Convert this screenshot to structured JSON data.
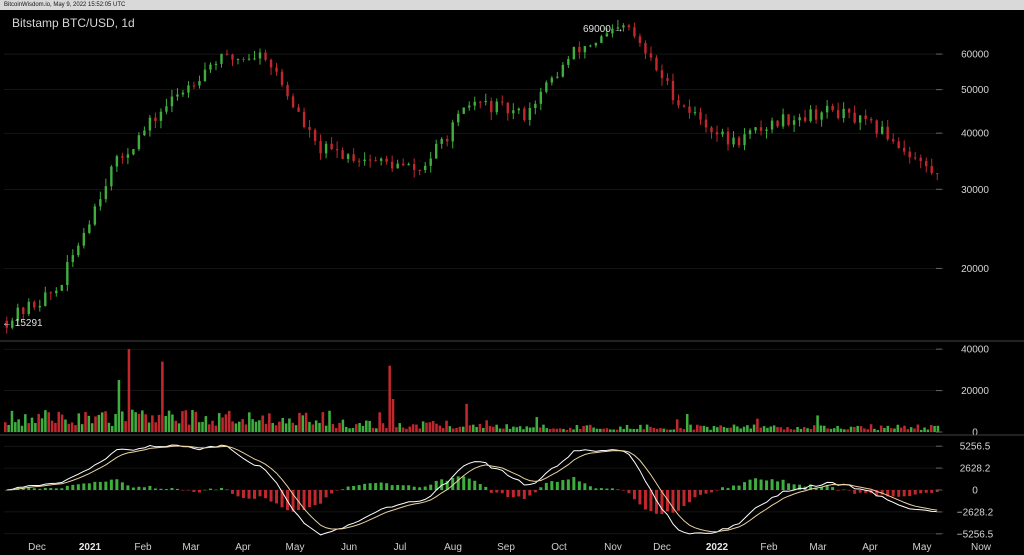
{
  "window": {
    "header_text": "BitcoinWisdom.io, May 9, 2022 15:52:05 UTC"
  },
  "chart_data": [
    {
      "type": "candlestick",
      "title": "Bitstamp BTC/USD, 1d",
      "ylim": [
        14000,
        70000
      ],
      "y_scale": "log",
      "y_ticks": [
        "20000",
        "30000",
        "40000",
        "50000",
        "60000"
      ],
      "x_ticks": [
        "Dec",
        "2021",
        "Feb",
        "Mar",
        "Apr",
        "May",
        "Jun",
        "Jul",
        "Aug",
        "Sep",
        "Oct",
        "Nov",
        "Dec",
        "2022",
        "Feb",
        "Mar",
        "Apr",
        "May",
        "Now"
      ],
      "bold_x_ticks": [
        "2021",
        "2022"
      ],
      "annotations": {
        "high": "69000 →",
        "low": "← 15291"
      },
      "price_path": [
        {
          "month": "Nov 2020",
          "close": 15291
        },
        {
          "month": "Dec 2020",
          "close": 18000
        },
        {
          "month": "Jan 2021",
          "close": 33000
        },
        {
          "month": "Feb 2021",
          "close": 45000
        },
        {
          "month": "Mar 2021",
          "close": 58000
        },
        {
          "month": "Apr 2021",
          "close": 60000
        },
        {
          "month": "May 2021",
          "close": 37000
        },
        {
          "month": "Jun 2021",
          "close": 35000
        },
        {
          "month": "Jul 2021",
          "close": 33000
        },
        {
          "month": "Aug 2021",
          "close": 47000
        },
        {
          "month": "Sep 2021",
          "close": 44000
        },
        {
          "month": "Oct 2021",
          "close": 61000
        },
        {
          "month": "Nov 2021",
          "close": 69000
        },
        {
          "month": "Dec 2021",
          "close": 47000
        },
        {
          "month": "Jan 2022",
          "close": 38000
        },
        {
          "month": "Feb 2022",
          "close": 43000
        },
        {
          "month": "Mar 2022",
          "close": 45000
        },
        {
          "month": "Apr 2022",
          "close": 40000
        },
        {
          "month": "May 2022",
          "close": 32000
        }
      ],
      "colors": {
        "up": "#3fae3f",
        "down": "#c0282e",
        "grid": "#2a2a2a",
        "axis_text": "#d6d6d6"
      }
    },
    {
      "type": "bar",
      "name": "volume",
      "y_ticks": [
        "0",
        "20000",
        "40000"
      ],
      "ylim": [
        0,
        42000
      ]
    },
    {
      "type": "macd",
      "y_ticks": [
        "5256.5",
        "2628.2",
        "0",
        "−2628.2",
        "−5256.5"
      ],
      "ylim": [
        -6000,
        6000
      ],
      "colors": {
        "macd_line": "#ffffff",
        "signal_line": "#e8d2a0"
      }
    }
  ]
}
